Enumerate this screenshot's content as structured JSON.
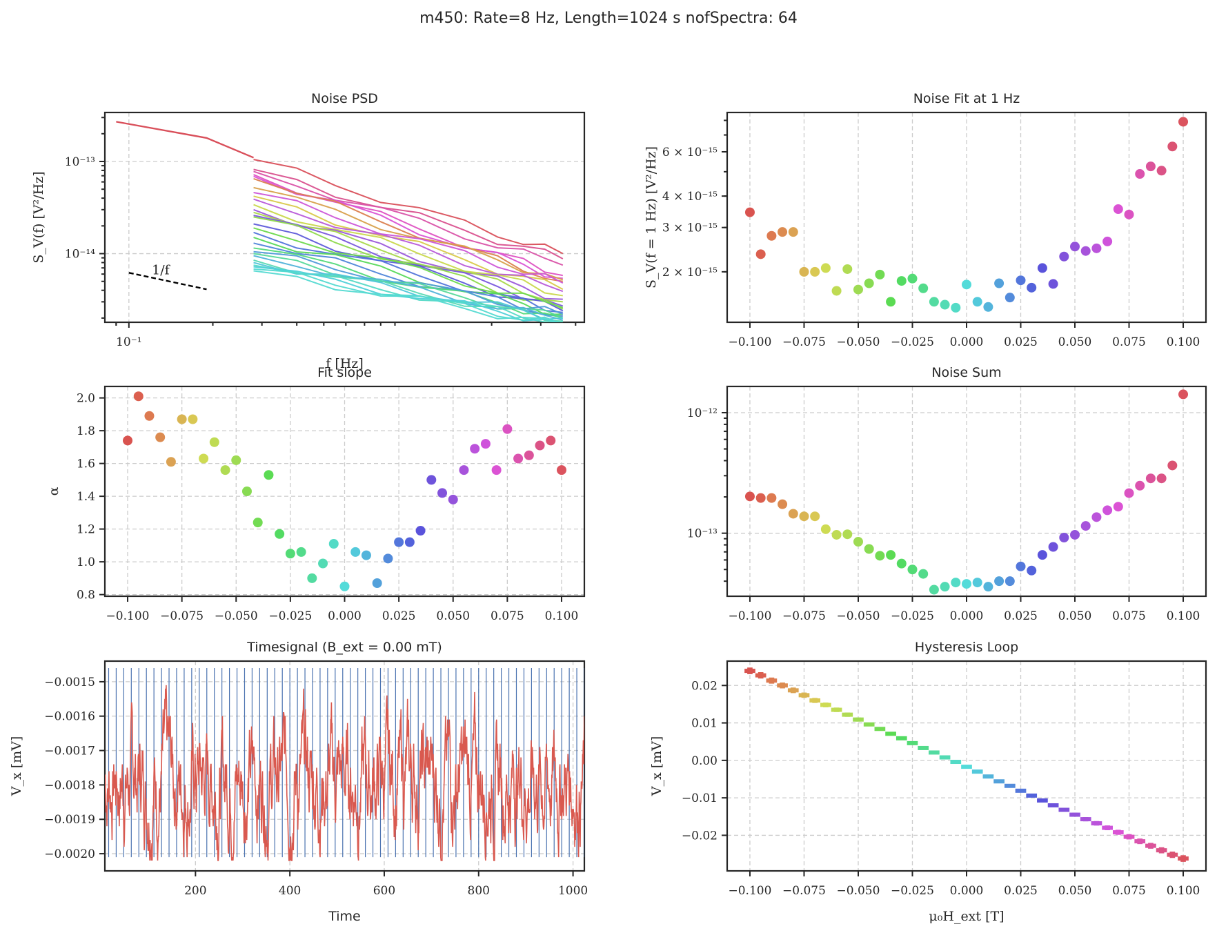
{
  "suptitle": "m450: Rate=8 Hz, Length=1024 s nofSpectra: 64",
  "chart_data": [
    {
      "id": "psd",
      "type": "line",
      "title": "Noise PSD",
      "xlabel": "f [Hz]",
      "ylabel": "S_V(f) [V²/Hz]",
      "xscale": "log",
      "yscale": "log",
      "xlim": [
        0.082,
        4.3
      ],
      "ylim": [
        1.8e-15,
        3.4e-13
      ],
      "xticks": [
        {
          "v": 0.1,
          "label": "10⁻¹"
        }
      ],
      "yticks": [
        {
          "v": 1e-13,
          "label": "10⁻¹³"
        },
        {
          "v": 1e-14,
          "label": "10⁻¹⁴"
        }
      ],
      "grid": true,
      "annotation": {
        "text": "1/f",
        "x": [
          0.1,
          0.19
        ],
        "y": [
          6.2e-15,
          4.1e-15
        ],
        "style": "dashed",
        "color": "#000000"
      },
      "x_full": [
        0.09,
        0.19,
        0.28
      ],
      "x": [
        0.28,
        0.4,
        0.55,
        0.8,
        1.1,
        1.6,
        2.1,
        2.6,
        3.1,
        3.6
      ],
      "full_series": {
        "name": "full-res",
        "color": "#d94f5a",
        "values": [
          2.7e-13,
          1.8e-13,
          1.1e-13
        ]
      },
      "series_start": [
        1.05e-13,
        8.2e-14,
        7.8e-14,
        7.2e-14,
        6.9e-14,
        6.5e-14,
        5.2e-14,
        4.6e-14,
        4.2e-14,
        3.9e-14,
        3.4e-14,
        3e-14,
        2.8e-14,
        2.6e-14,
        2.5e-14,
        2.1e-14,
        1.9e-14,
        1.7e-14,
        1.5e-14,
        1.3e-14,
        1.15e-14,
        1.05e-14,
        1e-14,
        9.5e-15,
        8.5e-15,
        8e-15,
        7.5e-15,
        7.2e-15,
        6.8e-15,
        6.5e-15
      ],
      "series_end": [
        1e-14,
        8.8e-15,
        7.5e-15,
        5.8e-15,
        5.4e-15,
        5e-15,
        5.2e-15,
        4.8e-15,
        4.1e-15,
        3.9e-15,
        3.5e-15,
        3.2e-15,
        3e-15,
        2.7e-15,
        2.5e-15,
        2.4e-15,
        2.6e-15,
        2.3e-15,
        2.2e-15,
        2.1e-15,
        2e-15,
        2.2e-15,
        2e-15,
        1.9e-15,
        1.85e-15,
        2e-15,
        1.8e-15,
        1.75e-15,
        1.7e-15,
        1.65e-15
      ],
      "series_colors": [
        "#d94f5a",
        "#d9508e",
        "#d952a8",
        "#de52c2",
        "#d953d4",
        "#db7f4f",
        "#d8a04b",
        "#cc56d8",
        "#d9c94a",
        "#b85ad9",
        "#c9d84b",
        "#9b58db",
        "#a9d84a",
        "#7a57dd",
        "#8ed94b",
        "#5e5bd9",
        "#6cd94c",
        "#5174da",
        "#57d95a",
        "#4f85d9",
        "#52d97a",
        "#4f9ad9",
        "#55d99a",
        "#4fb2d9",
        "#57d9b3",
        "#4fc6d9",
        "#55d9c6",
        "#4fd0d9",
        "#52d9d0",
        "#55dad2"
      ]
    },
    {
      "id": "fit1hz",
      "type": "scatter",
      "title": "Noise Fit at 1 Hz",
      "xlabel": "",
      "ylabel": "S_V(f = 1 Hz) [V²/Hz]",
      "yscale": "log",
      "xlim": [
        -0.1105,
        0.1105
      ],
      "ylim": [
        1.26e-15,
        8.6e-15
      ],
      "xticks": [
        -0.1,
        -0.075,
        -0.05,
        -0.025,
        0.0,
        0.025,
        0.05,
        0.075,
        0.1
      ],
      "xticklabels": [
        "−0.100",
        "−0.075",
        "−0.050",
        "−0.025",
        "0.000",
        "0.025",
        "0.050",
        "0.075",
        "0.100"
      ],
      "yticks": [
        {
          "v": 6e-15,
          "label": "6 × 10⁻¹⁵"
        },
        {
          "v": 4e-15,
          "label": "4 × 10⁻¹⁵"
        },
        {
          "v": 3e-15,
          "label": "3 × 10⁻¹⁵"
        },
        {
          "v": 2e-15,
          "label": "2 × 10⁻¹⁵"
        }
      ],
      "grid": "x",
      "x": [
        -0.1,
        -0.095,
        -0.09,
        -0.085,
        -0.08,
        -0.075,
        -0.07,
        -0.065,
        -0.06,
        -0.055,
        -0.05,
        -0.045,
        -0.04,
        -0.035,
        -0.03,
        -0.025,
        -0.02,
        -0.015,
        -0.01,
        -0.005,
        0.0,
        0.005,
        0.01,
        0.015,
        0.02,
        0.025,
        0.03,
        0.035,
        0.04,
        0.045,
        0.05,
        0.055,
        0.06,
        0.065,
        0.07,
        0.075,
        0.08,
        0.085,
        0.09,
        0.095,
        0.1
      ],
      "values": [
        3.45e-15,
        2.35e-15,
        2.78e-15,
        2.88e-15,
        2.88e-15,
        2e-15,
        2e-15,
        2.07e-15,
        1.68e-15,
        2.05e-15,
        1.7e-15,
        1.8e-15,
        1.95e-15,
        1.52e-15,
        1.84e-15,
        1.88e-15,
        1.72e-15,
        1.52e-15,
        1.48e-15,
        1.44e-15,
        1.78e-15,
        1.52e-15,
        1.45e-15,
        1.8e-15,
        1.58e-15,
        1.85e-15,
        1.73e-15,
        2.07e-15,
        1.79e-15,
        2.3e-15,
        2.52e-15,
        2.42e-15,
        2.48e-15,
        2.64e-15,
        3.55e-15,
        3.38e-15,
        4.9e-15,
        5.25e-15,
        5.05e-15,
        6.3e-15,
        7.9e-15
      ]
    },
    {
      "id": "slope",
      "type": "scatter",
      "title": "Fit slope",
      "xlabel": "",
      "ylabel": "α",
      "xlim": [
        -0.1105,
        0.1105
      ],
      "ylim": [
        0.79,
        2.07
      ],
      "xticks": [
        -0.1,
        -0.075,
        -0.05,
        -0.025,
        0.0,
        0.025,
        0.05,
        0.075,
        0.1
      ],
      "xticklabels": [
        "−0.100",
        "−0.075",
        "−0.050",
        "−0.025",
        "0.000",
        "0.025",
        "0.050",
        "0.075",
        "0.100"
      ],
      "yticks": [
        0.8,
        1.0,
        1.2,
        1.4,
        1.6,
        1.8,
        2.0
      ],
      "yticklabels": [
        "0.8",
        "1.0",
        "1.2",
        "1.4",
        "1.6",
        "1.8",
        "2.0"
      ],
      "grid": true,
      "x": [
        -0.1,
        -0.095,
        -0.09,
        -0.085,
        -0.08,
        -0.075,
        -0.07,
        -0.065,
        -0.06,
        -0.055,
        -0.05,
        -0.045,
        -0.04,
        -0.035,
        -0.03,
        -0.025,
        -0.02,
        -0.015,
        -0.01,
        -0.005,
        0.0,
        0.005,
        0.01,
        0.015,
        0.02,
        0.025,
        0.03,
        0.035,
        0.04,
        0.045,
        0.05,
        0.055,
        0.06,
        0.065,
        0.07,
        0.075,
        0.08,
        0.085,
        0.09,
        0.095,
        0.1
      ],
      "values": [
        1.74,
        2.01,
        1.89,
        1.76,
        1.61,
        1.87,
        1.87,
        1.63,
        1.73,
        1.56,
        1.62,
        1.43,
        1.24,
        1.53,
        1.17,
        1.05,
        1.06,
        0.9,
        0.99,
        1.11,
        0.85,
        1.06,
        1.04,
        0.87,
        1.02,
        1.12,
        1.12,
        1.19,
        1.5,
        1.42,
        1.38,
        1.56,
        1.69,
        1.72,
        1.56,
        1.81,
        1.63,
        1.65,
        1.71,
        1.74,
        1.56
      ]
    },
    {
      "id": "noisesum",
      "type": "scatter",
      "title": "Noise Sum",
      "xlabel": "",
      "ylabel": "",
      "yscale": "log",
      "xlim": [
        -0.1105,
        0.1105
      ],
      "ylim": [
        3e-14,
        1.65e-12
      ],
      "xticks": [
        -0.1,
        -0.075,
        -0.05,
        -0.025,
        0.0,
        0.025,
        0.05,
        0.075,
        0.1
      ],
      "xticklabels": [
        "−0.100",
        "−0.075",
        "−0.050",
        "−0.025",
        "0.000",
        "0.025",
        "0.050",
        "0.075",
        "0.100"
      ],
      "yticks": [
        {
          "v": 1e-12,
          "label": "10⁻¹²"
        },
        {
          "v": 1e-13,
          "label": "10⁻¹³"
        }
      ],
      "grid": true,
      "x": [
        -0.1,
        -0.095,
        -0.09,
        -0.085,
        -0.08,
        -0.075,
        -0.07,
        -0.065,
        -0.06,
        -0.055,
        -0.05,
        -0.045,
        -0.04,
        -0.035,
        -0.03,
        -0.025,
        -0.02,
        -0.015,
        -0.01,
        -0.005,
        0.0,
        0.005,
        0.01,
        0.015,
        0.02,
        0.025,
        0.03,
        0.035,
        0.04,
        0.045,
        0.05,
        0.055,
        0.06,
        0.065,
        0.07,
        0.075,
        0.08,
        0.085,
        0.09,
        0.095,
        0.1
      ],
      "values": [
        2.02e-13,
        1.96e-13,
        1.96e-13,
        1.74e-13,
        1.45e-13,
        1.38e-13,
        1.38e-13,
        1.08e-13,
        9.7e-14,
        9.8e-14,
        8.5e-14,
        7.4e-14,
        6.5e-14,
        6.6e-14,
        5.6e-14,
        5e-14,
        4.6e-14,
        3.4e-14,
        3.6e-14,
        3.9e-14,
        3.8e-14,
        3.9e-14,
        3.6e-14,
        4e-14,
        4e-14,
        5.3e-14,
        4.9e-14,
        6.6e-14,
        7.7e-14,
        9.2e-14,
        9.7e-14,
        1.15e-13,
        1.36e-13,
        1.55e-13,
        1.66e-13,
        2.15e-13,
        2.48e-13,
        2.85e-13,
        2.85e-13,
        3.65e-13,
        1.42e-12
      ]
    },
    {
      "id": "timesignal",
      "type": "line",
      "title": "Timesignal (B_ext = 0.00 mT)",
      "xlabel": "Time",
      "ylabel": "V_x [mV]",
      "xlim": [
        8,
        1024
      ],
      "ylim": [
        -0.00205,
        -0.00144
      ],
      "xticks": [
        200,
        400,
        600,
        800,
        1000
      ],
      "xticklabels": [
        "200",
        "400",
        "600",
        "800",
        "1000"
      ],
      "yticks": [
        -0.0015,
        -0.0016,
        -0.0017,
        -0.0018,
        -0.0019,
        -0.002
      ],
      "yticklabels": [
        "−0.0015",
        "−0.0016",
        "−0.0017",
        "−0.0018",
        "−0.0019",
        "−0.0020"
      ],
      "grid": true,
      "signal": {
        "color": "#d9594f",
        "mean": -0.00178,
        "min": -0.00202,
        "max": -0.00147,
        "n_samples": 8192
      },
      "segment_markers": {
        "color": "#4a72b0",
        "count": 64,
        "spacing": 16,
        "y_range": [
          -0.00201,
          -0.00146
        ]
      }
    },
    {
      "id": "hysteresis",
      "type": "scatter",
      "title": "Hysteresis Loop",
      "xlabel": "μ₀H_ext [T]",
      "ylabel": "V_x [mV]",
      "xlim": [
        -0.1105,
        0.1105
      ],
      "ylim": [
        -0.0295,
        0.0265
      ],
      "xticks": [
        -0.1,
        -0.075,
        -0.05,
        -0.025,
        0.0,
        0.025,
        0.05,
        0.075,
        0.1
      ],
      "xticklabels": [
        "−0.100",
        "−0.075",
        "−0.050",
        "−0.025",
        "0.000",
        "0.025",
        "0.050",
        "0.075",
        "0.100"
      ],
      "yticks": [
        0.02,
        0.01,
        0.0,
        -0.01,
        -0.02
      ],
      "yticklabels": [
        "0.02",
        "0.01",
        "0.00",
        "−0.01",
        "−0.02"
      ],
      "grid": true,
      "x": [
        -0.1,
        -0.095,
        -0.09,
        -0.085,
        -0.08,
        -0.075,
        -0.07,
        -0.065,
        -0.06,
        -0.055,
        -0.05,
        -0.045,
        -0.04,
        -0.035,
        -0.03,
        -0.025,
        -0.02,
        -0.015,
        -0.01,
        -0.005,
        0.0,
        0.005,
        0.01,
        0.015,
        0.02,
        0.025,
        0.03,
        0.035,
        0.04,
        0.045,
        0.05,
        0.055,
        0.06,
        0.065,
        0.07,
        0.075,
        0.08,
        0.085,
        0.09,
        0.095,
        0.1
      ],
      "values": [
        0.0239,
        0.0227,
        0.0213,
        0.02,
        0.0187,
        0.0174,
        0.016,
        0.0148,
        0.0135,
        0.0122,
        0.0109,
        0.0096,
        0.0084,
        0.0071,
        0.0059,
        0.0046,
        0.0033,
        0.0021,
        0.0008,
        -0.0004,
        -0.0017,
        -0.003,
        -0.0043,
        -0.0056,
        -0.0068,
        -0.0081,
        -0.0094,
        -0.0107,
        -0.012,
        -0.0132,
        -0.0145,
        -0.0157,
        -0.0168,
        -0.018,
        -0.0192,
        -0.0204,
        -0.0216,
        -0.0228,
        -0.024,
        -0.0252,
        -0.0262
      ],
      "xerr": 0.0025,
      "yerr_max": 0.0007
    }
  ],
  "point_colors": [
    "#d9534f",
    "#db5f4f",
    "#dd7a50",
    "#dc8b50",
    "#dba253",
    "#d9b553",
    "#d9c853",
    "#cedb53",
    "#bfdb53",
    "#b0db53",
    "#9edb53",
    "#88db53",
    "#72db53",
    "#5bdb53",
    "#53db62",
    "#53db76",
    "#53db8b",
    "#53dba1",
    "#53dbb4",
    "#53dbc6",
    "#53dbd9",
    "#53c9db",
    "#53b4db",
    "#53a1db",
    "#538bdb",
    "#5376db",
    "#5362db",
    "#5a53db",
    "#6e53db",
    "#8253db",
    "#9453db",
    "#a753db",
    "#bb53db",
    "#cf53db",
    "#db53d4",
    "#db53c2",
    "#db53ae",
    "#db539a",
    "#db5386",
    "#db5372",
    "#db535e"
  ]
}
